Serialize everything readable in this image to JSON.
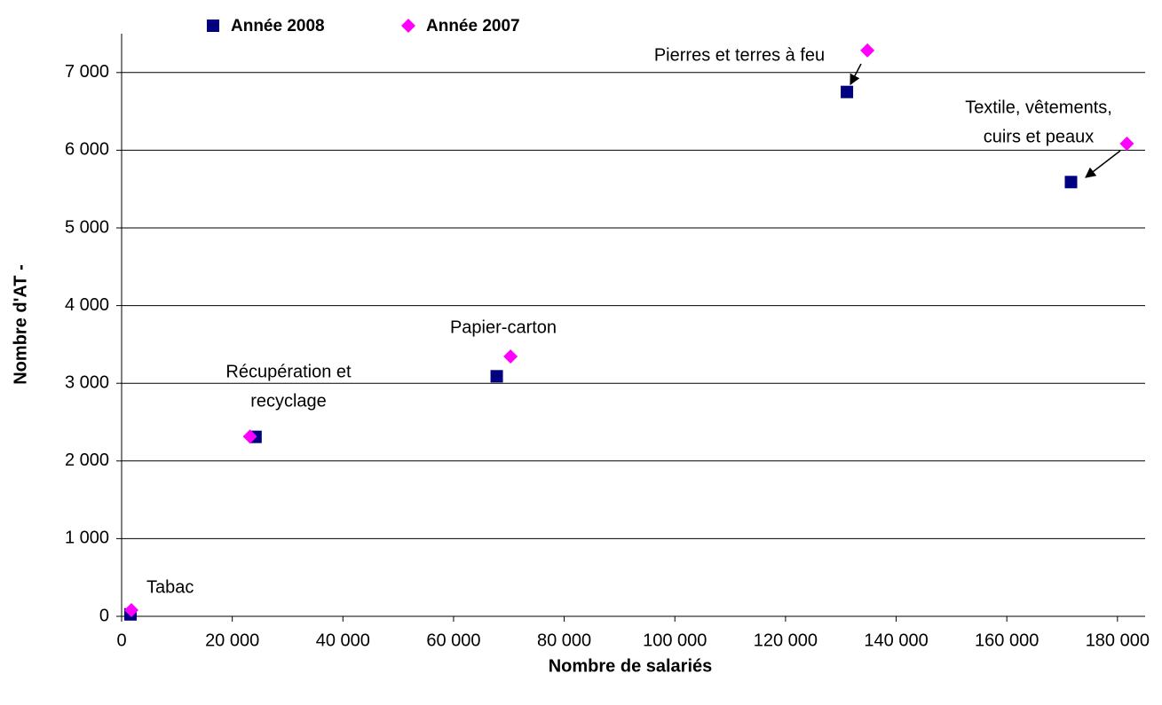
{
  "chart_data": {
    "type": "scatter",
    "xlabel": "Nombre de salariés",
    "ylabel": "Nombre d'AT -",
    "xlim": [
      0,
      185000
    ],
    "ylim": [
      0,
      7500
    ],
    "xticks": [
      0,
      {
        "value": 20000,
        "label": "20 000"
      },
      {
        "value": 40000,
        "label": "40 000"
      },
      {
        "value": 60000,
        "label": "60 000"
      },
      {
        "value": 80000,
        "label": "80 000"
      },
      {
        "value": 100000,
        "label": "100 000"
      },
      {
        "value": 120000,
        "label": "120 000"
      },
      {
        "value": 140000,
        "label": "140 000"
      },
      {
        "value": 160000,
        "label": "160 000"
      },
      {
        "value": 180000,
        "label": "180 000"
      }
    ],
    "yticks": [
      0,
      {
        "value": 1000,
        "label": "1 000"
      },
      {
        "value": 2000,
        "label": "2 000"
      },
      {
        "value": 3000,
        "label": "3 000"
      },
      {
        "value": 4000,
        "label": "4 000"
      },
      {
        "value": 5000,
        "label": "5 000"
      },
      {
        "value": 6000,
        "label": "6 000"
      },
      {
        "value": 7000,
        "label": "7 000"
      }
    ],
    "grid": true,
    "legend": "top",
    "series": [
      {
        "name": "Année 2008",
        "color": "#000080",
        "marker": "square",
        "x": [
          1600,
          24200,
          67800,
          131100,
          171600
        ],
        "values": [
          25,
          2310,
          3090,
          6750,
          5590
        ]
      },
      {
        "name": "Année 2007",
        "color": "#ff00ff",
        "marker": "diamond",
        "x": [
          1760,
          23200,
          70300,
          134800,
          181700
        ],
        "values": [
          80,
          2315,
          3345,
          7285,
          6085
        ]
      }
    ],
    "annotations": [
      [
        "Tabac"
      ],
      [
        "Récupération et",
        "recyclage"
      ],
      [
        "Papier-carton"
      ],
      [
        "Pierres et terres à feu"
      ],
      [
        "Textile, vêtements,",
        "cuirs et peaux"
      ]
    ]
  }
}
